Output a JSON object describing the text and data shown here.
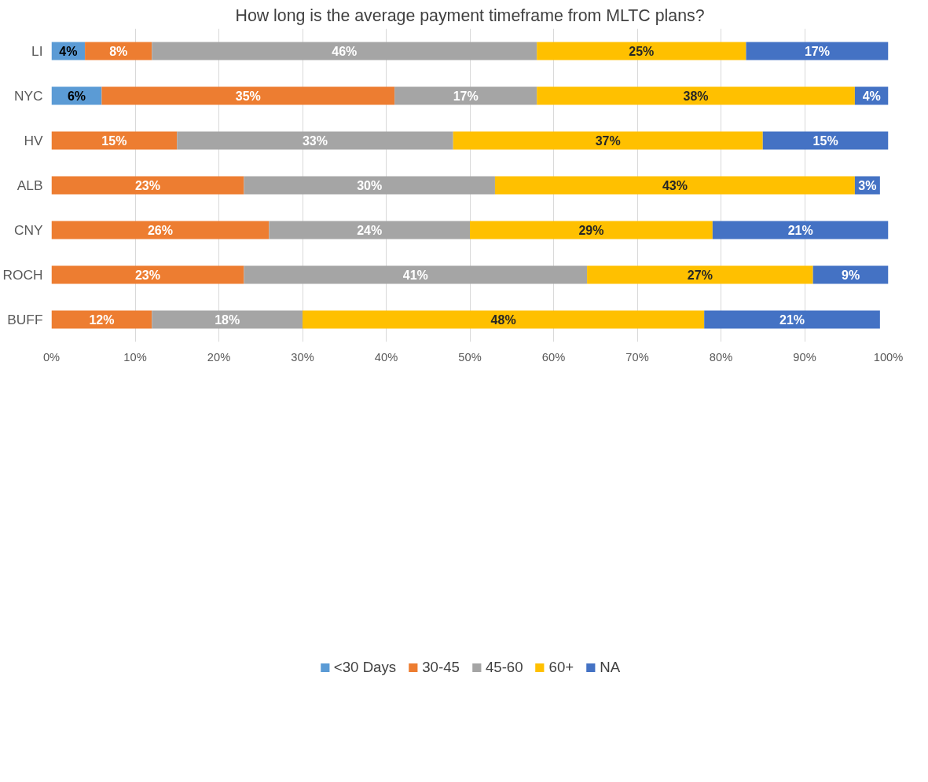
{
  "chart_data": {
    "type": "bar",
    "orientation": "horizontal",
    "stacked": true,
    "title": "How long is the average payment timeframe from MLTC plans?",
    "categories": [
      "LI",
      "NYC",
      "HV",
      "ALB",
      "CNY",
      "ROCH",
      "BUFF"
    ],
    "series": [
      {
        "name": "<30 Days",
        "color": "#5b9bd5",
        "values": [
          4,
          6,
          null,
          null,
          null,
          null,
          null
        ],
        "value_labels": [
          "4%",
          "6%",
          null,
          null,
          null,
          null,
          null
        ]
      },
      {
        "name": "30-45",
        "color": "#ed7d31",
        "values": [
          8,
          35,
          15,
          23,
          26,
          23,
          12
        ],
        "value_labels": [
          "8%",
          "35%",
          "15%",
          "23%",
          "26%",
          "23%",
          "12%"
        ]
      },
      {
        "name": "45-60",
        "color": "#a5a5a5",
        "values": [
          46,
          17,
          33,
          30,
          24,
          41,
          18
        ],
        "value_labels": [
          "46%",
          "17%",
          "33%",
          "30%",
          "24%",
          "41%",
          "18%"
        ]
      },
      {
        "name": "60+",
        "color": "#ffc000",
        "values": [
          25,
          38,
          37,
          43,
          29,
          27,
          48
        ],
        "value_labels": [
          "25%",
          "38%",
          "37%",
          "43%",
          "29%",
          "27%",
          "48%"
        ]
      },
      {
        "name": "NA",
        "color": "#4472c4",
        "values": [
          17,
          4,
          15,
          3,
          21,
          9,
          21
        ],
        "value_labels": [
          "17%",
          "4%",
          "15%",
          "3%",
          "21%",
          "9%",
          "21%"
        ]
      }
    ],
    "xlim": [
      0,
      100
    ],
    "xticks": [
      {
        "value": 0,
        "label": "0%"
      },
      {
        "value": 10,
        "label": "10%"
      },
      {
        "value": 20,
        "label": "20%"
      },
      {
        "value": 30,
        "label": "30%"
      },
      {
        "value": 40,
        "label": "40%"
      },
      {
        "value": 50,
        "label": "50%"
      },
      {
        "value": 60,
        "label": "60%"
      },
      {
        "value": 70,
        "label": "70%"
      },
      {
        "value": 80,
        "label": "80%"
      },
      {
        "value": 90,
        "label": "90%"
      },
      {
        "value": 100,
        "label": "100%"
      }
    ],
    "grid": "x",
    "legend": "bottom"
  }
}
